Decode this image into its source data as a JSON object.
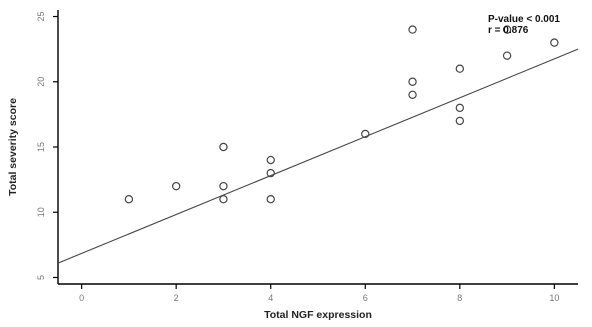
{
  "chart_data": {
    "type": "scatter",
    "title": "",
    "xlabel": "Total NGF expression",
    "ylabel": "Total severity score",
    "xlim": [
      -0.5,
      10.5
    ],
    "ylim": [
      4.5,
      25.5
    ],
    "x_ticks": [
      0,
      2,
      4,
      6,
      8,
      10
    ],
    "x_tick_labels": [
      "0",
      "2",
      "4",
      "6",
      "8",
      "10"
    ],
    "y_ticks": [
      5,
      10,
      15,
      20,
      25
    ],
    "y_tick_labels": [
      "5",
      "10",
      "15",
      "20",
      "25"
    ],
    "grid": false,
    "legend": "none",
    "annotations": [
      "P-value < 0.001",
      "r = 0.876"
    ],
    "marker": "open-circle",
    "colors": {
      "axis": "#000000",
      "points": "#444444",
      "fit_line": "#444444"
    },
    "points": [
      {
        "x": 1,
        "y": 11
      },
      {
        "x": 2,
        "y": 12
      },
      {
        "x": 3,
        "y": 11
      },
      {
        "x": 3,
        "y": 12
      },
      {
        "x": 3,
        "y": 15
      },
      {
        "x": 4,
        "y": 11
      },
      {
        "x": 4,
        "y": 13
      },
      {
        "x": 4,
        "y": 14
      },
      {
        "x": 6,
        "y": 16
      },
      {
        "x": 7,
        "y": 19
      },
      {
        "x": 7,
        "y": 20
      },
      {
        "x": 7,
        "y": 24
      },
      {
        "x": 8,
        "y": 17
      },
      {
        "x": 8,
        "y": 18
      },
      {
        "x": 8,
        "y": 21
      },
      {
        "x": 9,
        "y": 22
      },
      {
        "x": 9,
        "y": 24
      },
      {
        "x": 10,
        "y": 23
      }
    ],
    "fit_line": {
      "x": [
        -0.5,
        10.5
      ],
      "y": [
        6.1,
        22.5
      ]
    }
  }
}
